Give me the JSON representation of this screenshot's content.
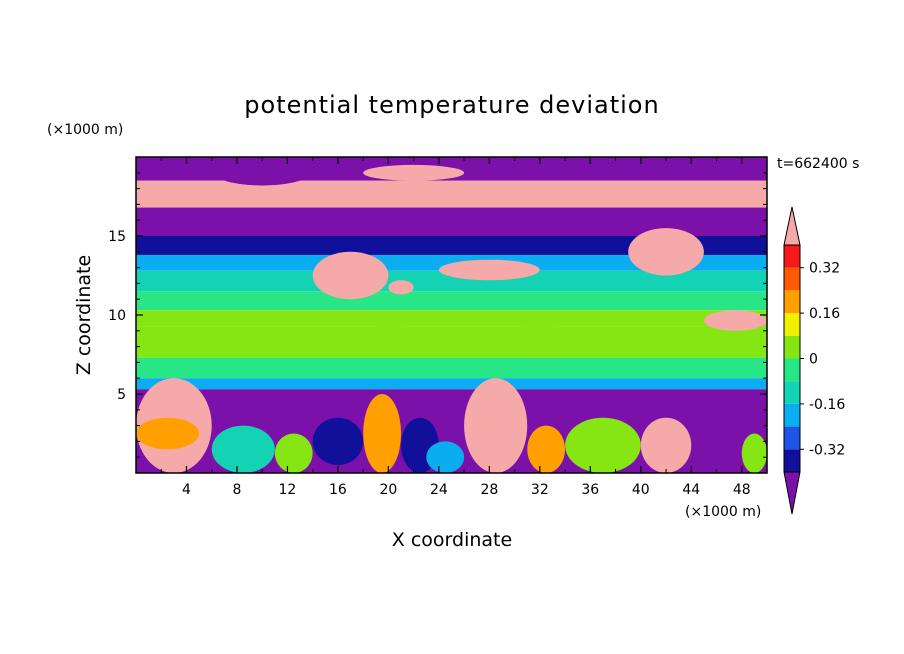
{
  "chart_data": {
    "type": "heatmap",
    "title": "potential temperature deviation",
    "xlabel": "X coordinate",
    "ylabel": "Z coordinate",
    "x_unit": "(×1000 m)",
    "z_unit": "(×1000 m)",
    "time_label": "t=662400 s",
    "xlim": [
      0,
      50
    ],
    "zlim": [
      0,
      20
    ],
    "x_ticks": [
      4,
      8,
      12,
      16,
      20,
      24,
      28,
      32,
      36,
      40,
      44,
      48
    ],
    "z_ticks": [
      5,
      10,
      15
    ],
    "colorbar": {
      "levels": [
        -0.4,
        -0.32,
        -0.24,
        -0.16,
        -0.08,
        0,
        0.08,
        0.16,
        0.24,
        0.32,
        0.4
      ],
      "tick_labels": [
        "-0.32",
        "-0.16",
        "0",
        "0.16",
        "0.32"
      ],
      "tick_values": [
        -0.32,
        -0.16,
        0,
        0.16,
        0.32
      ],
      "colors": [
        "#7b11a8",
        "#10109a",
        "#1f55e6",
        "#0aaef0",
        "#14d2b4",
        "#28e686",
        "#86e614",
        "#f0f000",
        "#ffa000",
        "#ff5a00",
        "#f51a1a",
        "#f5a9a9"
      ],
      "extend": "both"
    },
    "bands": [
      {
        "z": [
          18.5,
          20.0
        ],
        "value": -0.45
      },
      {
        "z": [
          16.8,
          18.5
        ],
        "value": 0.45
      },
      {
        "z": [
          15.0,
          16.8
        ],
        "value": -0.45
      },
      {
        "z": [
          13.8,
          15.0
        ],
        "value": -0.34
      },
      {
        "z": [
          12.8,
          13.8
        ],
        "value": -0.24
      },
      {
        "z": [
          11.5,
          12.8
        ],
        "value": -0.16
      },
      {
        "z": [
          10.3,
          11.5
        ],
        "value": -0.08
      },
      {
        "z": [
          9.3,
          10.3
        ],
        "value": 0.0
      },
      {
        "z": [
          7.3,
          9.3
        ],
        "value": 0.04
      },
      {
        "z": [
          6.0,
          7.3
        ],
        "value": -0.08
      },
      {
        "z": [
          5.3,
          6.0
        ],
        "value": -0.24
      },
      {
        "z": [
          0.0,
          5.3
        ],
        "value": -0.45
      }
    ],
    "patches": [
      {
        "x": [
          6,
          14
        ],
        "z": [
          18.2,
          20.0
        ],
        "value": -0.45
      },
      {
        "x": [
          18,
          26
        ],
        "z": [
          18.5,
          19.5
        ],
        "value": 0.45
      },
      {
        "x": [
          14,
          20
        ],
        "z": [
          11.0,
          14.0
        ],
        "value": 0.45
      },
      {
        "x": [
          20,
          22
        ],
        "z": [
          11.3,
          12.2
        ],
        "value": 0.45
      },
      {
        "x": [
          24,
          32
        ],
        "z": [
          12.2,
          13.5
        ],
        "value": 0.45
      },
      {
        "x": [
          39,
          45
        ],
        "z": [
          12.5,
          15.5
        ],
        "value": 0.45
      },
      {
        "x": [
          45,
          50
        ],
        "z": [
          9.0,
          10.3
        ],
        "value": 0.45
      },
      {
        "x": [
          16,
          24
        ],
        "z": [
          7.8,
          9.3
        ],
        "value": 0.04
      },
      {
        "x": [
          26,
          38
        ],
        "z": [
          7.3,
          9.3
        ],
        "value": 0.04
      },
      {
        "x": [
          0,
          6
        ],
        "z": [
          0.0,
          6.0
        ],
        "value": 0.45
      },
      {
        "x": [
          0,
          5
        ],
        "z": [
          1.5,
          3.5
        ],
        "value": 0.16
      },
      {
        "x": [
          6,
          11
        ],
        "z": [
          0.0,
          3.0
        ],
        "value": -0.16
      },
      {
        "x": [
          11,
          14
        ],
        "z": [
          0.0,
          2.5
        ],
        "value": 0.04
      },
      {
        "x": [
          14,
          18
        ],
        "z": [
          0.5,
          3.5
        ],
        "value": -0.34
      },
      {
        "x": [
          18,
          21
        ],
        "z": [
          0.0,
          5.0
        ],
        "value": 0.16
      },
      {
        "x": [
          21,
          24
        ],
        "z": [
          0.0,
          3.5
        ],
        "value": -0.34
      },
      {
        "x": [
          23,
          26
        ],
        "z": [
          0.0,
          2.0
        ],
        "value": -0.24
      },
      {
        "x": [
          26,
          31
        ],
        "z": [
          0.0,
          6.0
        ],
        "value": 0.45
      },
      {
        "x": [
          31,
          34
        ],
        "z": [
          0.0,
          3.0
        ],
        "value": 0.16
      },
      {
        "x": [
          34,
          40
        ],
        "z": [
          0.0,
          3.5
        ],
        "value": 0.04
      },
      {
        "x": [
          40,
          44
        ],
        "z": [
          0.0,
          3.5
        ],
        "value": 0.45
      },
      {
        "x": [
          44,
          48
        ],
        "z": [
          0.5,
          4.0
        ],
        "value": -0.45
      },
      {
        "x": [
          48,
          50
        ],
        "z": [
          0.0,
          2.5
        ],
        "value": 0.04
      }
    ]
  }
}
